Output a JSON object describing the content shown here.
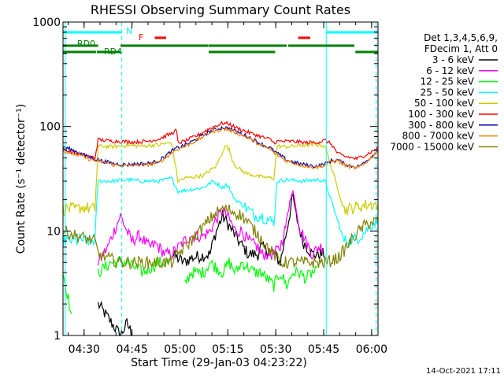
{
  "chart_data": {
    "type": "line",
    "title": "RHESSI Observing Summary Count Rates",
    "xlabel": "Start Time (29-Jan-03 04:23:22)",
    "ylabel": "Count Rate (s⁻¹ detector⁻¹)",
    "yscale": "log",
    "ylim": [
      1,
      1000
    ],
    "xlim_minutes": [
      0,
      98.6
    ],
    "x_ticks": [
      {
        "label": "04:30",
        "t": 6.6
      },
      {
        "label": "04:45",
        "t": 21.6
      },
      {
        "label": "05:00",
        "t": 36.6
      },
      {
        "label": "05:15",
        "t": 51.6
      },
      {
        "label": "05:30",
        "t": 66.6
      },
      {
        "label": "05:45",
        "t": 81.6
      },
      {
        "label": "06:00",
        "t": 96.6
      }
    ],
    "y_ticks": [
      {
        "label": "1",
        "v": 1
      },
      {
        "label": "10",
        "v": 10
      },
      {
        "label": "100",
        "v": 100
      },
      {
        "label": "1000",
        "v": 1000
      }
    ],
    "legend_header": [
      "Det 1,3,4,5,6,9,",
      "FDecim 1, Att 0"
    ],
    "series": [
      {
        "name": "3 - 6 keV",
        "color": "#000000",
        "x": [
          0,
          10,
          11,
          18,
          20,
          22,
          27,
          29,
          32,
          34,
          38,
          40,
          46,
          47,
          48,
          50,
          53,
          55,
          58,
          61,
          62,
          66,
          68,
          70,
          72,
          73,
          75,
          78,
          82,
          86,
          88,
          90,
          93,
          96,
          98.6
        ],
        "y": [
          null,
          null,
          2,
          1,
          1.3,
          1,
          null,
          null,
          null,
          6,
          5,
          5.5,
          6,
          8,
          10,
          14,
          10,
          8,
          6,
          6,
          7,
          6,
          5,
          10,
          22,
          14,
          8,
          6,
          6,
          null,
          null,
          null,
          null,
          null,
          null
        ]
      },
      {
        "name": "6 - 12 keV",
        "color": "#ff00ff",
        "x": [
          0,
          10,
          11,
          14,
          16,
          18,
          20,
          21.5,
          24,
          27,
          29,
          32,
          34,
          38,
          40,
          44,
          46,
          48,
          50,
          52,
          54,
          56,
          58,
          61,
          62,
          64,
          66,
          68,
          70,
          71,
          72,
          73,
          74,
          76,
          78,
          80,
          82,
          83,
          84,
          86
        ],
        "y": [
          null,
          null,
          5,
          7,
          10,
          14,
          10,
          8,
          9,
          7,
          7.5,
          6,
          6,
          8,
          9,
          9,
          10,
          13,
          16,
          13,
          10,
          10,
          8,
          7,
          6,
          6,
          6,
          7,
          12,
          20,
          24,
          17,
          11,
          8,
          6,
          7,
          7,
          null,
          null,
          null
        ]
      },
      {
        "name": "12 - 25 keV",
        "color": "#00ff00",
        "x": [
          0,
          2,
          3,
          10,
          11,
          15,
          20,
          25,
          30,
          34,
          36,
          38,
          40,
          44,
          46,
          50,
          52,
          54,
          56,
          60,
          62,
          66,
          68,
          70,
          72,
          74,
          76,
          78,
          80,
          86,
          98.6
        ],
        "y": [
          4,
          2,
          1.2,
          null,
          4,
          5,
          5,
          4,
          5,
          5,
          null,
          3,
          4,
          4,
          5,
          4,
          5,
          4,
          5,
          4,
          4,
          3,
          4,
          3,
          4,
          4,
          3.5,
          4,
          4,
          null,
          null
        ]
      },
      {
        "name": "25 - 50 keV",
        "color": "#00ffff",
        "x": [
          0,
          2,
          4,
          6,
          8,
          10,
          11,
          15,
          20,
          25,
          30,
          34,
          36,
          40,
          44,
          47,
          50,
          51,
          52,
          53,
          54,
          57,
          60,
          62,
          66,
          67,
          70,
          75,
          80,
          82,
          88,
          90,
          92,
          94,
          96,
          98.6
        ],
        "y": [
          8,
          8.2,
          8,
          8.3,
          8,
          8.1,
          30,
          30,
          31,
          30,
          30,
          32,
          24,
          25,
          26,
          30,
          26,
          28,
          26,
          22,
          20,
          17,
          14,
          14,
          12,
          30,
          31,
          30,
          31,
          30,
          8,
          8.2,
          8.5,
          9.5,
          11,
          13
        ]
      },
      {
        "name": "50 - 100 keV",
        "color": "#cccc00",
        "x": [
          0,
          2,
          4,
          6,
          8,
          10,
          11,
          15,
          20,
          25,
          30,
          34,
          36,
          38,
          44,
          48,
          50,
          51,
          52,
          53,
          54,
          57,
          60,
          62,
          66,
          67,
          70,
          75,
          80,
          82,
          88,
          90,
          92,
          94,
          96,
          98.6
        ],
        "y": [
          16,
          16.5,
          16,
          17,
          16.5,
          16.2,
          65,
          64,
          66,
          65,
          67,
          70,
          30,
          32,
          34,
          42,
          58,
          66,
          60,
          48,
          42,
          36,
          34,
          33,
          32,
          65,
          64,
          66,
          67,
          65,
          16,
          16.5,
          17,
          17.5,
          18,
          18
        ]
      },
      {
        "name": "100 - 300 keV",
        "color": "#ff0000",
        "x": [
          0,
          2,
          4,
          6,
          8,
          10,
          11,
          14,
          18,
          22,
          26,
          30,
          34,
          35.5,
          36,
          38,
          42,
          46,
          50,
          52,
          54,
          58,
          62,
          65,
          66,
          67,
          72,
          76,
          80,
          82,
          84,
          86,
          88,
          92,
          96,
          98.6
        ],
        "y": [
          60,
          58,
          55,
          54,
          52,
          50,
          75,
          73,
          72,
          71,
          72,
          76,
          86,
          92,
          70,
          72,
          82,
          96,
          108,
          106,
          98,
          88,
          80,
          75,
          70,
          72,
          72,
          70,
          71,
          74,
          68,
          55,
          52,
          49,
          56,
          62
        ]
      },
      {
        "name": "300 - 800 keV",
        "color": "#0000aa",
        "x": [
          0,
          2,
          4,
          6,
          8,
          10,
          12,
          16,
          20,
          24,
          26,
          28,
          30,
          32,
          34,
          36,
          38,
          42,
          46,
          50,
          52,
          54,
          58,
          62,
          65,
          66,
          70,
          74,
          76,
          78,
          80,
          82,
          84,
          86,
          88,
          90,
          92,
          94,
          96,
          98.6
        ],
        "y": [
          64,
          61,
          58,
          54,
          51,
          49,
          47,
          44,
          43,
          44,
          44,
          45,
          47,
          52,
          58,
          63,
          66,
          76,
          90,
          98,
          96,
          90,
          80,
          68,
          62,
          58,
          48,
          44,
          43,
          42,
          42,
          44,
          47,
          48,
          44,
          42,
          41,
          44,
          50,
          60
        ]
      },
      {
        "name": "800 - 7000 keV",
        "color": "#ff8000",
        "x": [
          0,
          2,
          4,
          6,
          8,
          10,
          12,
          16,
          20,
          24,
          26,
          28,
          30,
          32,
          34,
          36,
          38,
          42,
          46,
          50,
          52,
          54,
          58,
          62,
          65,
          66,
          70,
          74,
          76,
          78,
          80,
          82,
          84,
          86,
          88,
          90,
          92,
          94,
          96,
          98.6
        ],
        "y": [
          58,
          56,
          54,
          52,
          49,
          47,
          46,
          43,
          42,
          43,
          43,
          44,
          45,
          50,
          56,
          61,
          64,
          74,
          88,
          95,
          93,
          88,
          78,
          66,
          60,
          56,
          47,
          43,
          42,
          41,
          41,
          43,
          46,
          47,
          43,
          41,
          40,
          43,
          49,
          58
        ]
      },
      {
        "name": "7000 - 15000 keV",
        "color": "#808000",
        "x": [
          0,
          2,
          4,
          6,
          8,
          10,
          11,
          14,
          18,
          22,
          26,
          30,
          34,
          36,
          40,
          44,
          46,
          48,
          50,
          52,
          54,
          56,
          58,
          60,
          62,
          64,
          66,
          68,
          72,
          76,
          80,
          82,
          84,
          86,
          88,
          90,
          92,
          94,
          96,
          98.6
        ],
        "y": [
          10,
          9.5,
          9,
          8.7,
          8.3,
          8,
          6,
          5.5,
          5,
          5,
          5,
          5,
          5,
          6,
          8,
          11,
          13,
          15,
          16,
          16,
          15,
          14,
          12,
          10,
          8.5,
          7,
          6,
          5,
          5,
          5,
          5,
          5,
          5.2,
          5.5,
          6.5,
          8,
          9.5,
          11,
          12,
          12.5
        ]
      }
    ],
    "flag_bars": [
      {
        "label": "N",
        "color": "#00ffff",
        "segments": [
          [
            0,
            18.3
          ],
          [
            82.4,
            98.6
          ]
        ]
      },
      {
        "label": "F",
        "color": "#ff0000",
        "segments": [
          [
            28.7,
            32.3
          ],
          [
            73.6,
            77.4
          ]
        ]
      },
      {
        "label": "RD0",
        "color": "#008000",
        "segments": [
          [
            0,
            11
          ],
          [
            18,
            45.5
          ],
          [
            45.6,
            70
          ],
          [
            70.5,
            91.2
          ]
        ]
      },
      {
        "label": "RD4",
        "color": "#008000",
        "segments": [
          [
            0,
            10.4
          ],
          [
            10.6,
            18
          ],
          [
            45.6,
            66.4
          ],
          [
            91.5,
            98.6
          ]
        ]
      }
    ],
    "vertical_lines": [
      {
        "t": 0.7,
        "style": "solid"
      },
      {
        "t": 18.4,
        "style": "dashed"
      },
      {
        "t": 82.4,
        "style": "solid"
      },
      {
        "t": 98.0,
        "style": "dashed"
      }
    ]
  },
  "footer": {
    "date": "14-Oct-2021 17:11"
  }
}
